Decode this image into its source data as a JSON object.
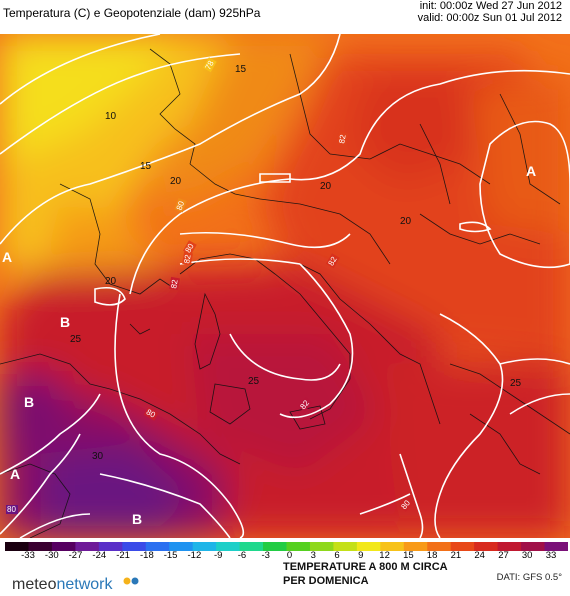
{
  "header": {
    "title": "Temperatura (C) e Geopotenziale (dam) 925hPa",
    "init": "init: 00:00z Wed 27 Jun 2012",
    "valid": "valid: 00:00z Sun 01 Jul 2012"
  },
  "colorbar": {
    "ticks": [
      "-33",
      "-30",
      "-27",
      "-24",
      "-21",
      "-18",
      "-15",
      "-12",
      "-9",
      "-6",
      "-3",
      "0",
      "3",
      "6",
      "9",
      "12",
      "15",
      "18",
      "21",
      "24",
      "27",
      "30",
      "33"
    ],
    "colors": [
      "#1a0010",
      "#3a0030",
      "#560060",
      "#6e1a98",
      "#5a2fc8",
      "#3a4be8",
      "#2b70f0",
      "#1f93f0",
      "#1fb5e8",
      "#1ecfc8",
      "#1fd88c",
      "#22cc44",
      "#55d020",
      "#8ed81c",
      "#c4e018",
      "#f2e81a",
      "#f7c21a",
      "#f89a18",
      "#f27018",
      "#e84818",
      "#d82a1e",
      "#c01830",
      "#a01048",
      "#7a1078"
    ]
  },
  "caption": {
    "line1": "TEMPERATURE A 800 M CIRCA",
    "line2": "PER DOMENICA"
  },
  "dati": "DATI: GFS 0.5°",
  "logo": {
    "meteo": "meteo",
    "network": "network"
  },
  "map_labels": {
    "highs_lows": [
      "A",
      "A",
      "B",
      "B",
      "A",
      "B"
    ],
    "isotherms": [
      "10",
      "15",
      "15",
      "20",
      "20",
      "20",
      "20",
      "25",
      "25",
      "30",
      "25"
    ],
    "geopotential": [
      "78",
      "80",
      "82",
      "82",
      "80",
      "82",
      "82",
      "80",
      "80",
      "80",
      "82"
    ]
  }
}
